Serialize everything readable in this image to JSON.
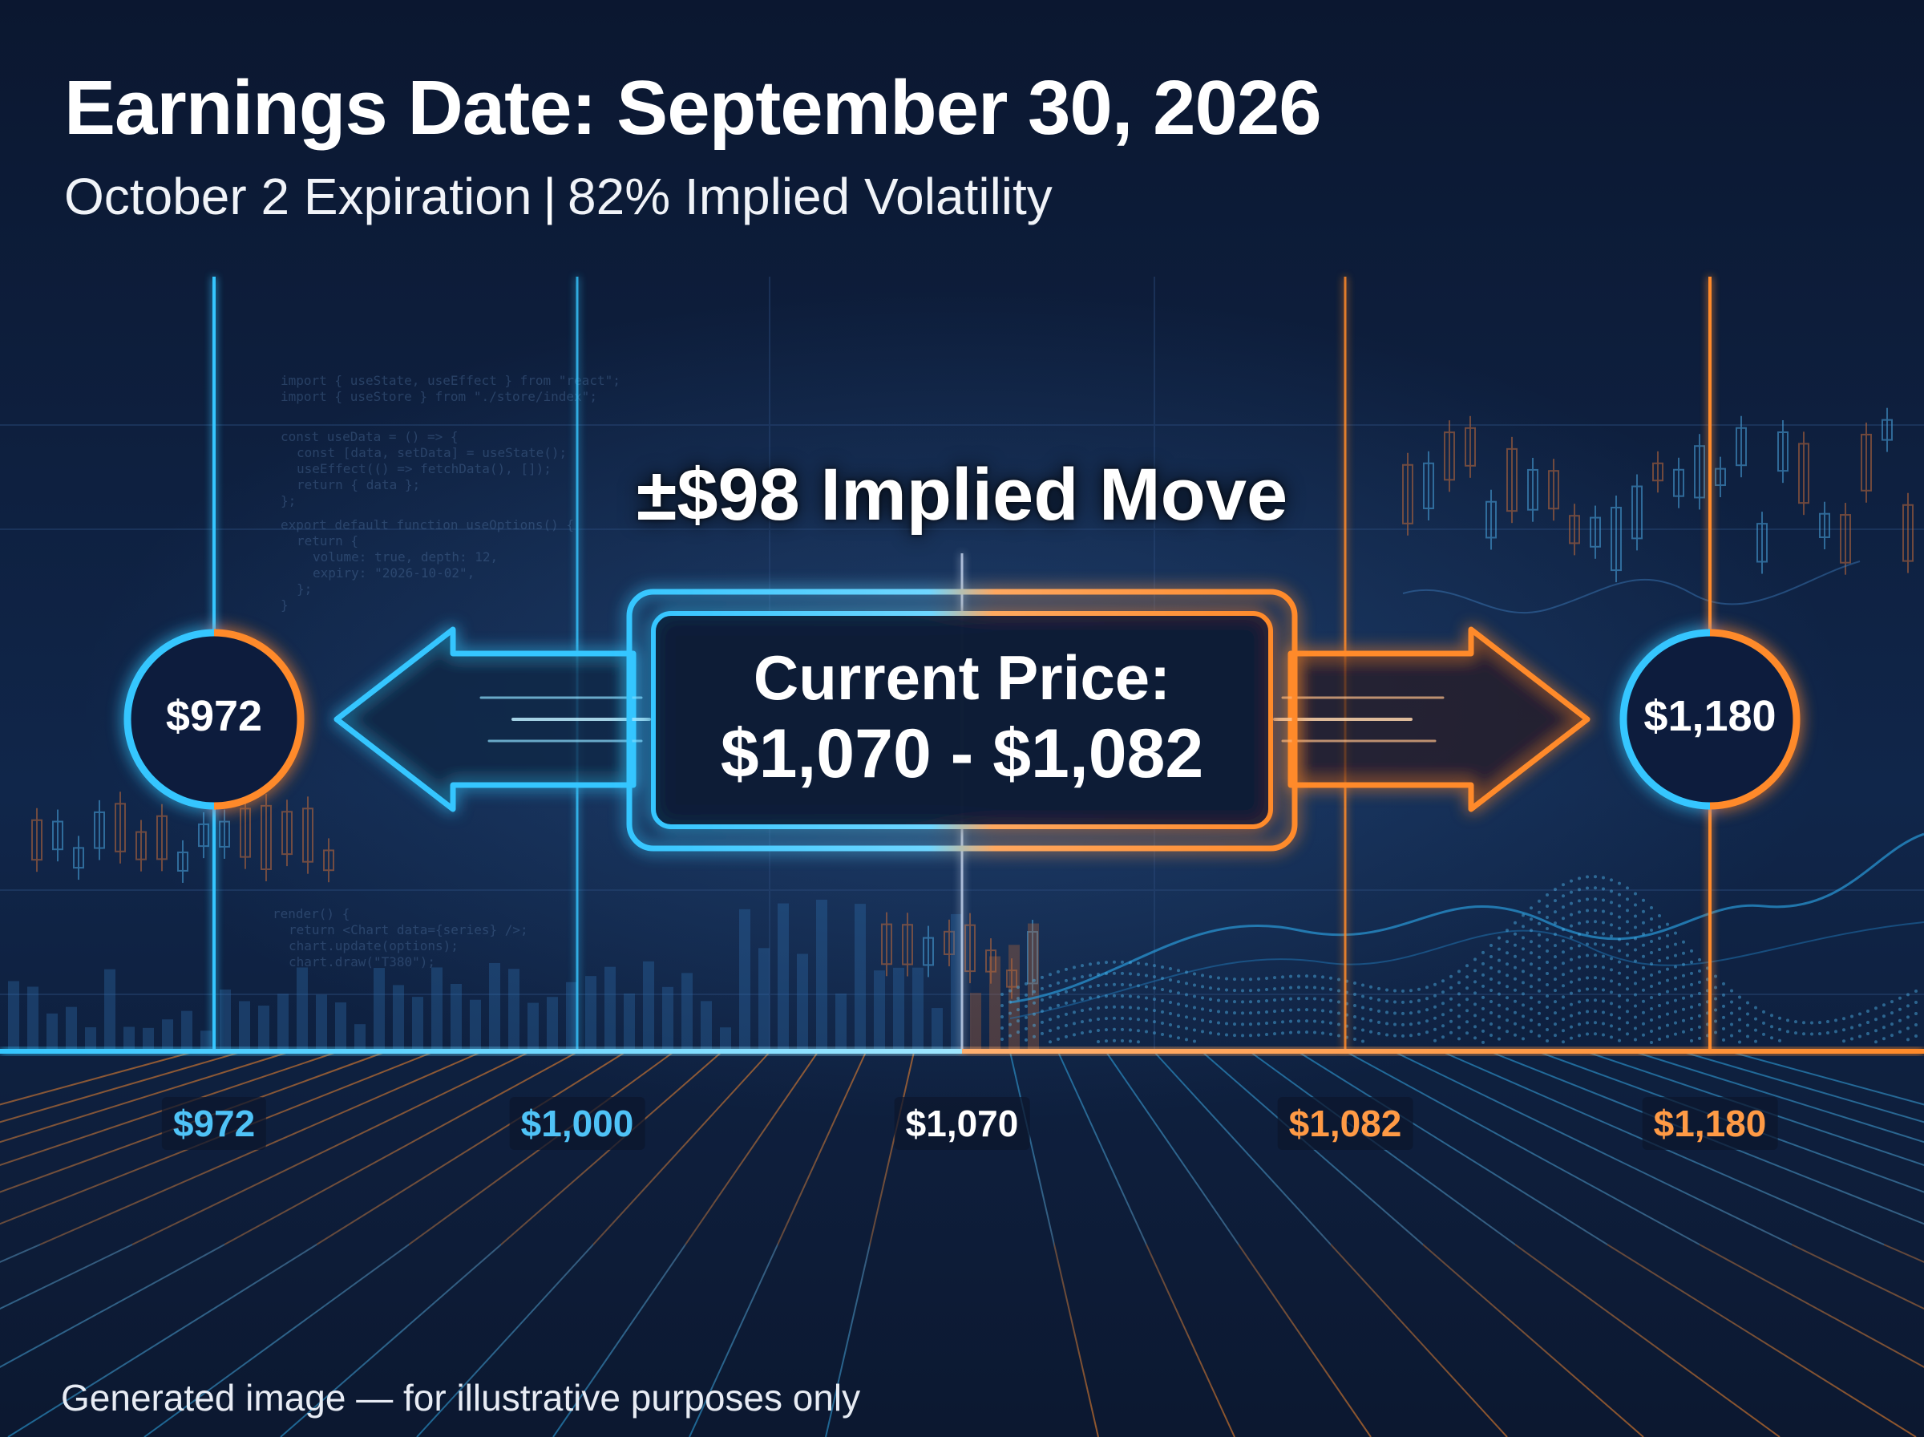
{
  "header": {
    "title": "Earnings Date: September 30, 2026",
    "subtitle_left": "October 2 Expiration",
    "subtitle_sep": "|",
    "subtitle_right": "82% Implied Volatility"
  },
  "implied_move": "±$98 Implied Move",
  "current_price": {
    "label": "Current Price:",
    "range": "$1,070 - $1,082"
  },
  "bounds": {
    "lower": "$972",
    "upper": "$1,180"
  },
  "axis_ticks": [
    {
      "label": "$972",
      "color": "#4fc3f7"
    },
    {
      "label": "$1,000",
      "color": "#4fc3f7"
    },
    {
      "label": "$1,070",
      "color": "#ffffff"
    },
    {
      "label": "$1,082",
      "color": "#ff9a45"
    },
    {
      "label": "$1,180",
      "color": "#ff9a45"
    }
  ],
  "colors": {
    "background": "#0d1a33",
    "downside": "#35c6ff",
    "upside": "#ff8a2a"
  },
  "icons": [
    "left-arrow-icon",
    "right-arrow-icon"
  ],
  "footer": "Generated image — for illustrative purposes only"
}
